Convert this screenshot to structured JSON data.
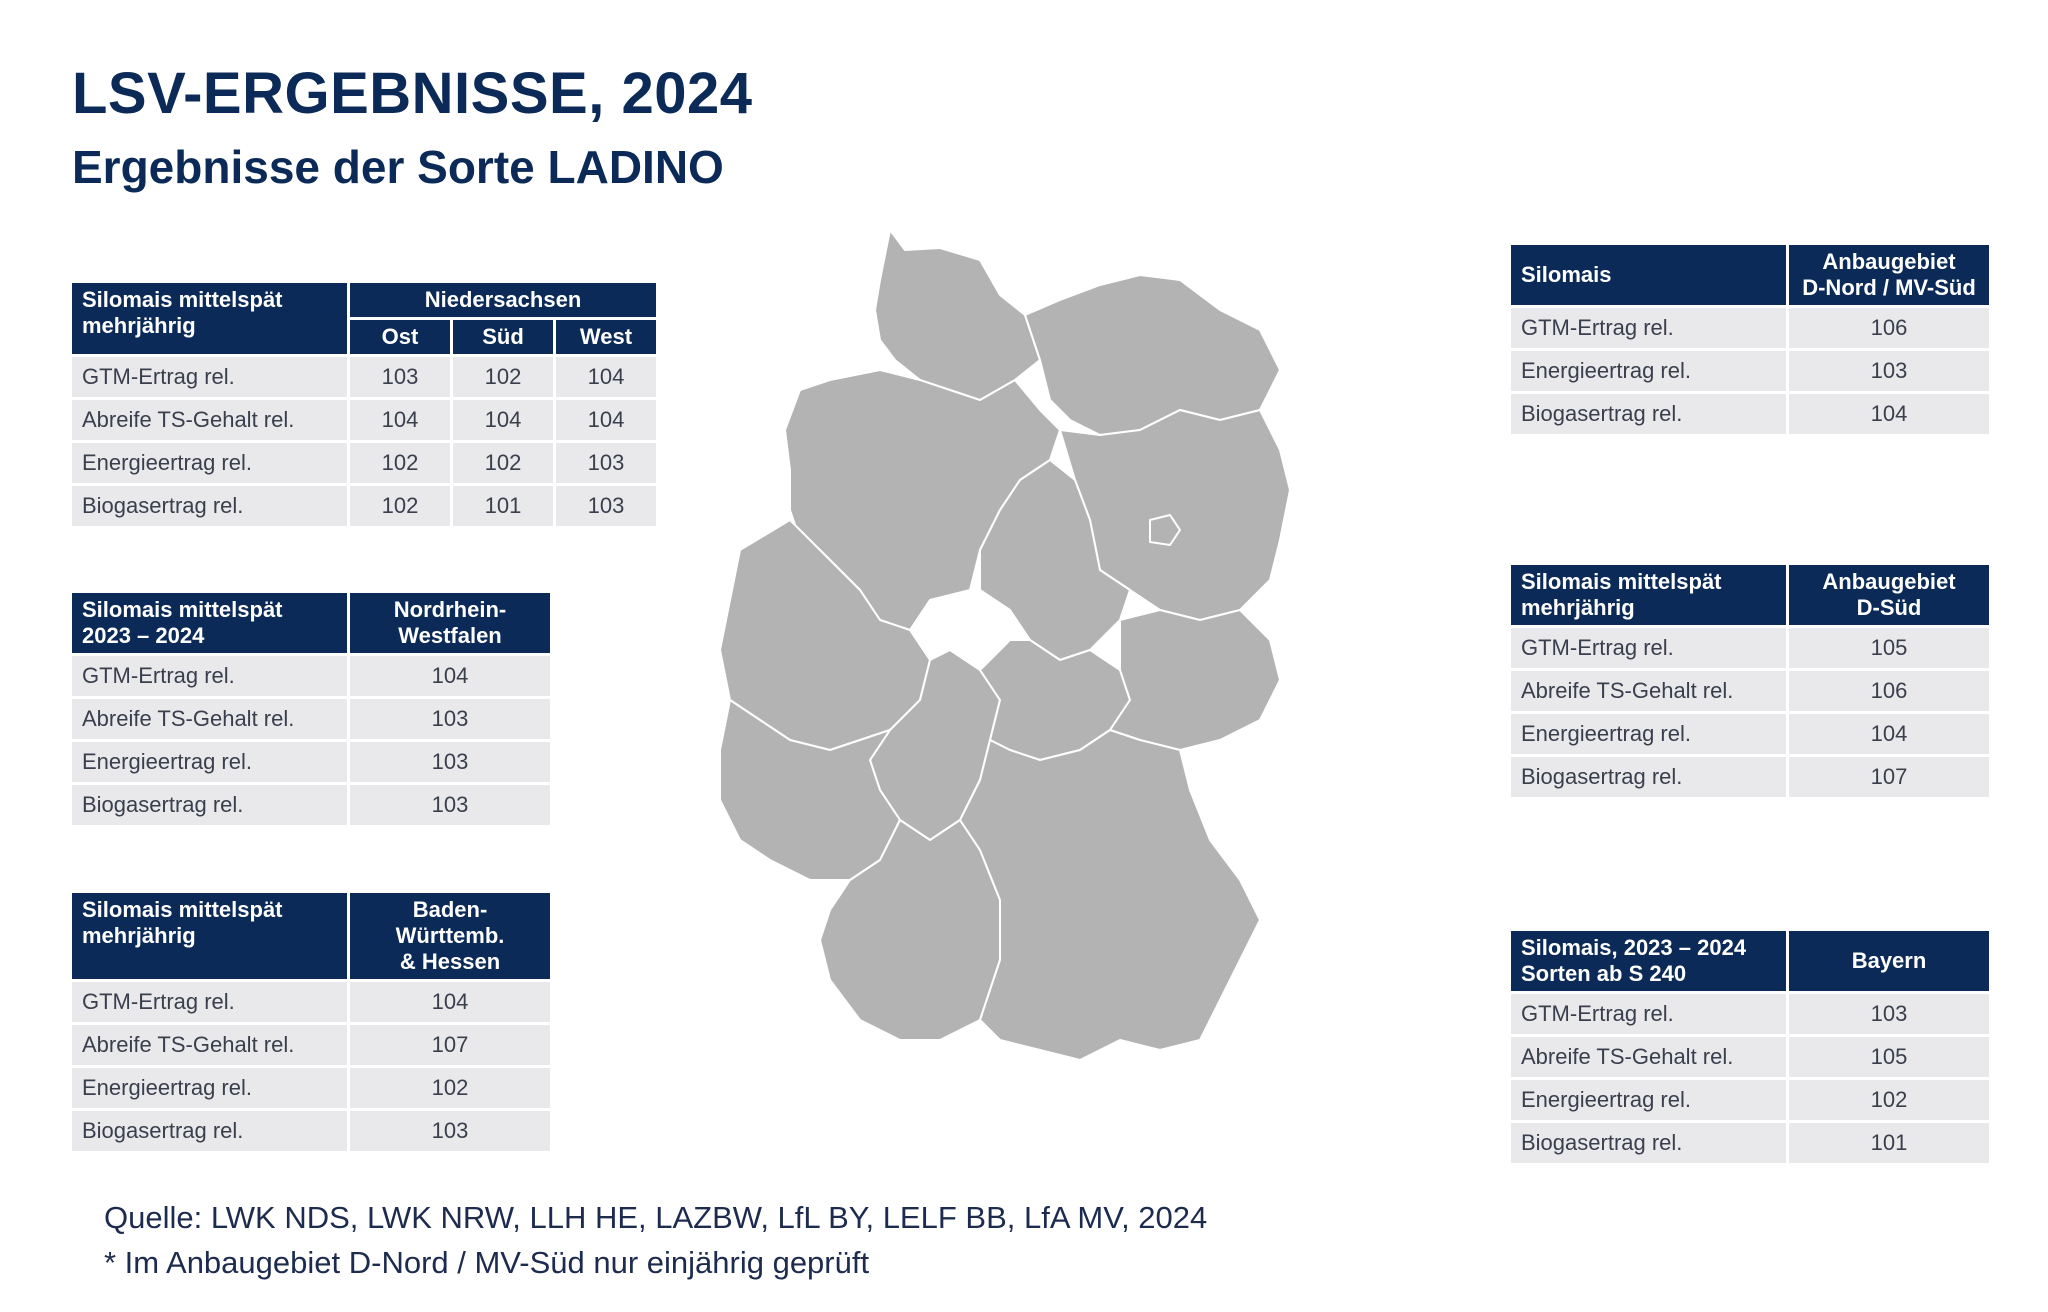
{
  "title": "LSV-ERGEBNISSE, 2024",
  "subtitle": "Ergebnisse der Sorte LADINO",
  "chart_data": [
    {
      "type": "table",
      "header_label": "Silomais mittelspät\nmehrjährig",
      "region": "Niedersachsen",
      "columns": [
        "Ost",
        "Süd",
        "West"
      ],
      "rows": [
        {
          "label": "GTM-Ertrag rel.",
          "values": [
            103,
            102,
            104
          ]
        },
        {
          "label": "Abreife TS-Gehalt rel.",
          "values": [
            104,
            104,
            104
          ]
        },
        {
          "label": "Energieertrag rel.",
          "values": [
            102,
            102,
            103
          ]
        },
        {
          "label": "Biogasertrag rel.",
          "values": [
            102,
            101,
            103
          ]
        }
      ]
    },
    {
      "type": "table",
      "header_label": "Silomais mittelspät\n2023 – 2024",
      "region": "Nordrhein-\nWestfalen",
      "rows": [
        {
          "label": "GTM-Ertrag rel.",
          "values": [
            104
          ]
        },
        {
          "label": "Abreife TS-Gehalt rel.",
          "values": [
            103
          ]
        },
        {
          "label": "Energieertrag rel.",
          "values": [
            103
          ]
        },
        {
          "label": "Biogasertrag rel.",
          "values": [
            103
          ]
        }
      ]
    },
    {
      "type": "table",
      "header_label": "Silomais mittelspät\nmehrjährig",
      "region": "Baden-Württemb.\n& Hessen",
      "rows": [
        {
          "label": "GTM-Ertrag rel.",
          "values": [
            104
          ]
        },
        {
          "label": "Abreife TS-Gehalt rel.",
          "values": [
            107
          ]
        },
        {
          "label": "Energieertrag rel.",
          "values": [
            102
          ]
        },
        {
          "label": "Biogasertrag rel.",
          "values": [
            103
          ]
        }
      ]
    },
    {
      "type": "table",
      "header_label": "Silomais",
      "region": "Anbaugebiet\nD-Nord / MV-Süd",
      "rows": [
        {
          "label": "GTM-Ertrag rel.",
          "values": [
            106
          ]
        },
        {
          "label": "Energieertrag rel.",
          "values": [
            103
          ]
        },
        {
          "label": "Biogasertrag rel.",
          "values": [
            104
          ]
        }
      ]
    },
    {
      "type": "table",
      "header_label": "Silomais mittelspät\nmehrjährig",
      "region": "Anbaugebiet\nD-Süd",
      "rows": [
        {
          "label": "GTM-Ertrag rel.",
          "values": [
            105
          ]
        },
        {
          "label": "Abreife TS-Gehalt rel.",
          "values": [
            106
          ]
        },
        {
          "label": "Energieertrag rel.",
          "values": [
            104
          ]
        },
        {
          "label": "Biogasertrag rel.",
          "values": [
            107
          ]
        }
      ]
    },
    {
      "type": "table",
      "header_label": "Silomais, 2023 – 2024\nSorten ab S 240",
      "region": "Bayern",
      "rows": [
        {
          "label": "GTM-Ertrag rel.",
          "values": [
            103
          ]
        },
        {
          "label": "Abreife TS-Gehalt rel.",
          "values": [
            105
          ]
        },
        {
          "label": "Energieertrag rel.",
          "values": [
            102
          ]
        },
        {
          "label": "Biogasertrag rel.",
          "values": [
            101
          ]
        }
      ]
    }
  ],
  "footer": {
    "source": "Quelle: LWK NDS, LWK NRW, LLH HE, LAZBW, LfL BY, LELF BB, LfA MV, 2024",
    "note": "* Im Anbaugebiet D-Nord / MV-Süd nur einjährig geprüft"
  },
  "colors": {
    "header_bg": "#0b2a57",
    "cell_bg": "#e9e9eb",
    "map_fill": "#b3b3b3"
  }
}
